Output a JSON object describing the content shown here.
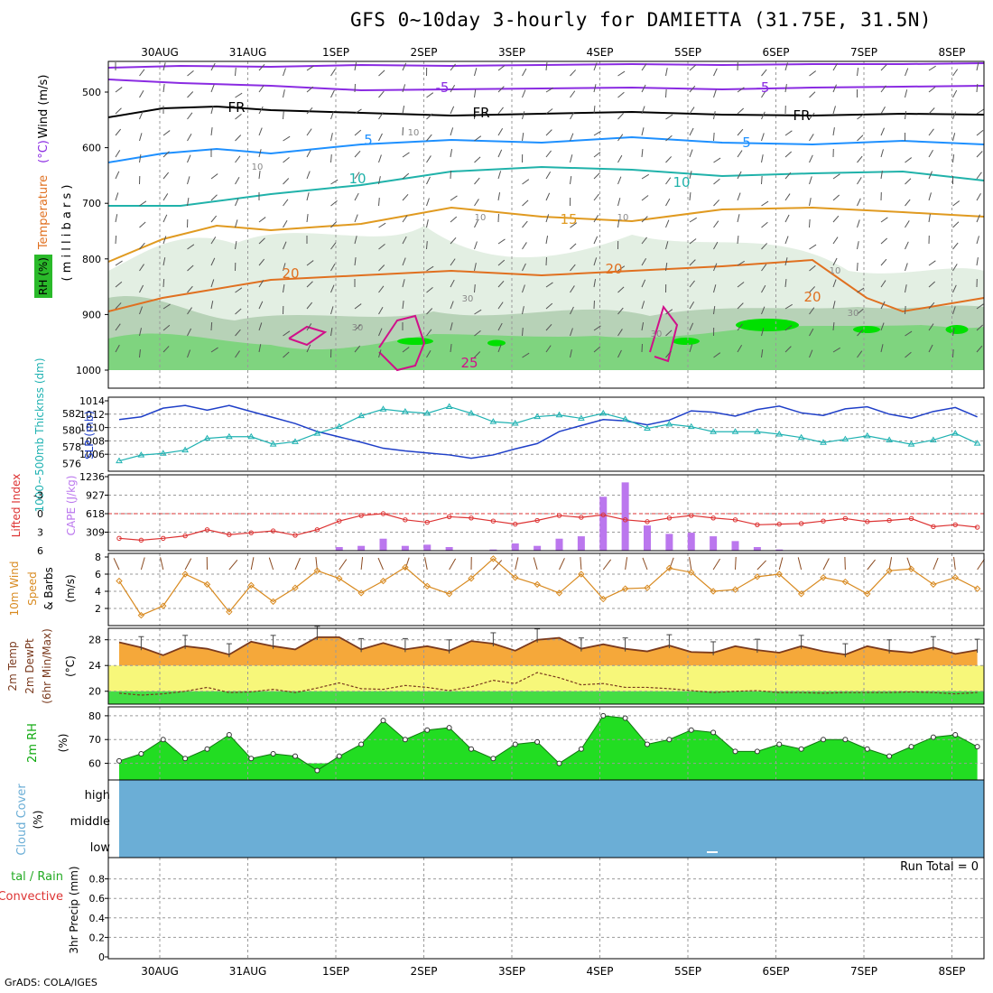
{
  "title": "GFS 0~10day 3-hourly for DAMIETTA (31.75E, 31.5N)",
  "credit": "GrADS: COLA/IGES",
  "colors": {
    "frame": "#000000",
    "grid": "#9a9a9a",
    "isotherm": "#8a2be2",
    "freezing": "#000000",
    "isotherm_5": "#1e90ff",
    "isotherm_10": "#20b2aa",
    "isotherm_15": "#e09a20",
    "isotherm_20": "#e07020",
    "isotherm_25": "#d0108a",
    "rh_light": "#e3efe3",
    "rh_mid": "#b7d2b7",
    "rh_green": "#7fd47f",
    "rh_bright": "#00e000",
    "slp": "#1f3fc8",
    "thickness": "#20b2b2",
    "li_cape_line": "#dd3333",
    "cape_bars": "#bb77ee",
    "wind10m": "#d88a20",
    "temp_fill": "#f5a83a",
    "temp_line": "#7a3a1e",
    "band_yellow": "#f7f77a",
    "band_green": "#44dd44",
    "rh2m_fill": "#22dd22",
    "rh2m_dark": "#11aa11",
    "cloud": "#6baed6",
    "precip_run_total_text": "#000000"
  },
  "x_labels_top": [
    "30AUG",
    "31AUG",
    "1SEP",
    "2SEP",
    "3SEP",
    "4SEP",
    "5SEP",
    "6SEP",
    "7SEP",
    "8SEP"
  ],
  "x_labels_bottom": [
    "30AUG",
    "31AUG",
    "1SEP",
    "2SEP",
    "3SEP",
    "4SEP",
    "5SEP",
    "6SEP",
    "7SEP",
    "8SEP"
  ],
  "panels": {
    "upper_air": {
      "ylabel_parts": [
        {
          "text": "Wind (m/s)",
          "color": "#000000"
        },
        {
          "text": " (°C)",
          "color": "#8a2be2"
        },
        {
          "text": "Temperature",
          "color": "#e07020"
        }
      ],
      "rh_label": "RH (%)",
      "ylabel_units": "( m i l l i b a r s )",
      "levels": [
        "500",
        "600",
        "700",
        "800",
        "900",
        "1000"
      ],
      "contour_labels": [
        "-5",
        "-5",
        "FR",
        "FR",
        "FR",
        "5",
        "5",
        "10",
        "10",
        "15",
        "20",
        "20",
        "20",
        "25",
        "10",
        "10",
        "10",
        "10",
        "30",
        "30",
        "30",
        "30",
        "10"
      ]
    },
    "slp_thickness": {
      "ylabel_left": "1000~500mb Thicknss (dm)",
      "ylabel_right": "SLP (mb)",
      "thickness_ticks": [
        "582",
        "580",
        "578",
        "576"
      ],
      "slp_ticks": [
        "1014",
        "1012",
        "1010",
        "1008",
        "1006"
      ]
    },
    "li_cape": {
      "ylabel_left": "Lifted Index",
      "ylabel_right": "CAPE (J/kg)",
      "li_ticks": [
        "-3",
        "0",
        "3",
        "6"
      ],
      "cape_ticks": [
        "1236",
        "927",
        "618",
        "309"
      ]
    },
    "wind10m": {
      "ylabel_a": "10m Wind",
      "ylabel_b": "Speed",
      "ylabel_c": "& Barbs",
      "units": "(m/s)",
      "ticks": [
        "8",
        "6",
        "4",
        "2"
      ]
    },
    "temp2m": {
      "ylabel_a": "2m Temp",
      "ylabel_b": "2m DewPt",
      "ylabel_c": "(6hr Min/Max)",
      "units": "(°C)",
      "ticks": [
        "28",
        "24",
        "20"
      ]
    },
    "rh2m": {
      "ylabel": "2m RH",
      "units": "(%)",
      "ticks": [
        "80",
        "70",
        "60"
      ]
    },
    "cloud": {
      "ylabel": "Cloud Cover",
      "units": "(%)",
      "levels": [
        "high",
        "middle",
        "low"
      ]
    },
    "precip": {
      "ylabel_a": "tal / Rain",
      "ylabel_b": "Convective",
      "ylabel_units": "3hr Precip (mm)",
      "ticks": [
        "0.8",
        "0.6",
        "0.4",
        "0.2",
        "0"
      ],
      "run_total": "Run Total = 0"
    }
  },
  "chart_data": [
    {
      "type": "line",
      "title": "SLP and 1000-500mb thickness",
      "x_days": [
        0.0,
        0.25,
        0.5,
        0.75,
        1.0,
        1.25,
        1.5,
        1.75,
        2.0,
        2.25,
        2.5,
        2.75,
        3.0,
        3.25,
        3.5,
        3.75,
        4.0,
        4.25,
        4.5,
        4.75,
        5.0,
        5.25,
        5.5,
        5.75,
        6.0,
        6.25,
        6.5,
        6.75,
        7.0,
        7.25,
        7.5,
        7.75,
        8.0,
        8.25,
        8.5,
        8.75,
        9.0,
        9.25,
        9.5,
        9.75
      ],
      "series": [
        {
          "name": "SLP (mb)",
          "unit": "mb",
          "values": [
            1011.2,
            1011.6,
            1012.9,
            1013.3,
            1012.6,
            1013.3,
            1012.4,
            1011.5,
            1010.6,
            1009.4,
            1008.6,
            1007.8,
            1006.9,
            1006.5,
            1006.2,
            1005.9,
            1005.4,
            1005.9,
            1006.8,
            1007.6,
            1009.4,
            1010.3,
            1011.2,
            1011.0,
            1010.4,
            1011.1,
            1012.5,
            1012.3,
            1011.7,
            1012.7,
            1013.2,
            1012.2,
            1011.8,
            1012.8,
            1013.1,
            1012.0,
            1011.4,
            1012.4,
            1013.0,
            1011.6
          ]
        },
        {
          "name": "1000-500mb Thickness (dm)",
          "unit": "dm",
          "values": [
            576.3,
            577.0,
            577.2,
            577.6,
            579.0,
            579.2,
            579.2,
            578.3,
            578.6,
            579.6,
            580.4,
            581.7,
            582.5,
            582.2,
            582.0,
            582.8,
            582.0,
            581.0,
            580.8,
            581.6,
            581.8,
            581.4,
            582.0,
            581.3,
            580.2,
            580.7,
            580.4,
            579.8,
            579.8,
            579.8,
            579.5,
            579.1,
            578.5,
            578.9,
            579.3,
            578.8,
            578.3,
            578.8,
            579.6,
            578.4
          ]
        }
      ],
      "xlabel": "",
      "ylim_slp": [
        1004,
        1014
      ],
      "ylim_thickness": [
        575.5,
        583.5
      ]
    },
    {
      "type": "bar",
      "title": "Lifted Index and CAPE",
      "x_days": [
        0.0,
        0.25,
        0.5,
        0.75,
        1.0,
        1.25,
        1.5,
        1.75,
        2.0,
        2.25,
        2.5,
        2.75,
        3.0,
        3.25,
        3.5,
        3.75,
        4.0,
        4.25,
        4.5,
        4.75,
        5.0,
        5.25,
        5.5,
        5.75,
        6.0,
        6.25,
        6.5,
        6.75,
        7.0,
        7.25,
        7.5,
        7.75,
        8.0,
        8.25,
        8.5,
        8.75,
        9.0,
        9.25,
        9.5,
        9.75
      ],
      "series": [
        {
          "name": "Lifted Index",
          "values": [
            4.0,
            4.3,
            4.0,
            3.6,
            2.6,
            3.4,
            3.1,
            2.8,
            3.5,
            2.6,
            1.2,
            0.3,
            0.0,
            1.0,
            1.4,
            0.5,
            0.7,
            1.2,
            1.7,
            1.1,
            0.3,
            0.6,
            0.2,
            1.0,
            1.3,
            0.7,
            0.3,
            0.7,
            1.0,
            1.8,
            1.7,
            1.6,
            1.2,
            0.8,
            1.3,
            1.1,
            0.8,
            2.1,
            1.8,
            2.2
          ]
        },
        {
          "name": "CAPE (J/kg)",
          "values": [
            0,
            0,
            0,
            0,
            0,
            0,
            0,
            0,
            0,
            0,
            60,
            80,
            200,
            80,
            100,
            60,
            0,
            20,
            120,
            80,
            200,
            240,
            900,
            1140,
            420,
            280,
            300,
            240,
            160,
            60,
            20,
            0,
            0,
            0,
            0,
            0,
            0,
            0,
            0,
            0
          ]
        }
      ],
      "li_lim": [
        6,
        -6
      ],
      "cape_lim": [
        0,
        1236
      ]
    },
    {
      "type": "line",
      "title": "10m Wind Speed",
      "x_days": [
        0.0,
        0.25,
        0.5,
        0.75,
        1.0,
        1.25,
        1.5,
        1.75,
        2.0,
        2.25,
        2.5,
        2.75,
        3.0,
        3.25,
        3.5,
        3.75,
        4.0,
        4.25,
        4.5,
        4.75,
        5.0,
        5.25,
        5.5,
        5.75,
        6.0,
        6.25,
        6.5,
        6.75,
        7.0,
        7.25,
        7.5,
        7.75,
        8.0,
        8.25,
        8.5,
        8.75,
        9.0,
        9.25,
        9.5,
        9.75
      ],
      "series": [
        {
          "name": "10m Wind Speed (m/s)",
          "values": [
            5.2,
            1.2,
            2.3,
            6.0,
            4.8,
            1.6,
            4.7,
            2.8,
            4.4,
            6.4,
            5.5,
            3.8,
            5.2,
            6.8,
            4.6,
            3.7,
            5.5,
            7.8,
            5.6,
            4.8,
            3.8,
            6.0,
            3.1,
            4.3,
            4.4,
            6.7,
            6.2,
            4.0,
            4.2,
            5.7,
            6.0,
            3.7,
            5.6,
            5.1,
            3.7,
            6.4,
            6.6,
            4.8,
            5.6,
            4.3
          ]
        }
      ],
      "ylim": [
        0,
        8
      ]
    },
    {
      "type": "area",
      "title": "2m Temperature and Dewpoint",
      "x_days": [
        0.0,
        0.25,
        0.5,
        0.75,
        1.0,
        1.25,
        1.5,
        1.75,
        2.0,
        2.25,
        2.5,
        2.75,
        3.0,
        3.25,
        3.5,
        3.75,
        4.0,
        4.25,
        4.5,
        4.75,
        5.0,
        5.25,
        5.5,
        5.75,
        6.0,
        6.25,
        6.5,
        6.75,
        7.0,
        7.25,
        7.5,
        7.75,
        8.0,
        8.25,
        8.5,
        8.75,
        9.0,
        9.25,
        9.5,
        9.75
      ],
      "series": [
        {
          "name": "2m Temp (°C)",
          "values": [
            27.6,
            26.8,
            25.6,
            27.0,
            26.6,
            25.7,
            27.7,
            27.0,
            26.5,
            28.4,
            28.4,
            26.5,
            27.5,
            26.5,
            27.0,
            26.3,
            27.8,
            27.4,
            26.3,
            28.0,
            28.3,
            26.6,
            27.3,
            26.6,
            26.2,
            27.1,
            26.1,
            26.0,
            27.0,
            26.4,
            26.0,
            27.0,
            26.2,
            25.7,
            27.0,
            26.3,
            26.0,
            26.8,
            25.8,
            26.4
          ]
        },
        {
          "name": "2m DewPt (°C)",
          "values": [
            19.7,
            19.4,
            19.6,
            20.0,
            20.6,
            19.8,
            19.9,
            20.3,
            19.8,
            20.5,
            21.3,
            20.4,
            20.3,
            20.9,
            20.6,
            20.1,
            20.7,
            21.7,
            21.2,
            22.9,
            22.1,
            21.0,
            21.2,
            20.6,
            20.6,
            20.4,
            20.1,
            19.8,
            20.0,
            20.1,
            19.8,
            19.8,
            19.7,
            19.8,
            19.8,
            19.8,
            19.9,
            19.8,
            19.6,
            19.8
          ]
        }
      ],
      "ylim": [
        18,
        29.5
      ]
    },
    {
      "type": "area",
      "title": "2m RH",
      "x_days": [
        0.0,
        0.25,
        0.5,
        0.75,
        1.0,
        1.25,
        1.5,
        1.75,
        2.0,
        2.25,
        2.5,
        2.75,
        3.0,
        3.25,
        3.5,
        3.75,
        4.0,
        4.25,
        4.5,
        4.75,
        5.0,
        5.25,
        5.5,
        5.75,
        6.0,
        6.25,
        6.5,
        6.75,
        7.0,
        7.25,
        7.5,
        7.75,
        8.0,
        8.25,
        8.5,
        8.75,
        9.0,
        9.25,
        9.5,
        9.75
      ],
      "series": [
        {
          "name": "2m RH (%)",
          "values": [
            61,
            64,
            70,
            62,
            66,
            72,
            62,
            64,
            63,
            57,
            63,
            68,
            78,
            70,
            74,
            75,
            66,
            62,
            68,
            69,
            60,
            66,
            80,
            79,
            68,
            70,
            74,
            73,
            65,
            65,
            68,
            66,
            70,
            70,
            66,
            63,
            67,
            71,
            72,
            67
          ]
        }
      ],
      "ylim": [
        53,
        83
      ]
    },
    {
      "type": "heatmap",
      "title": "Cloud Cover",
      "levels": [
        "high",
        "middle",
        "low"
      ],
      "coverage_percent": 100
    },
    {
      "type": "bar",
      "title": "3hr Precip",
      "x_days": [
        0.0,
        1.0,
        2.0,
        3.0,
        4.0,
        5.0,
        6.0,
        7.0,
        8.0,
        9.0
      ],
      "series": [
        {
          "name": "3hr Precip (mm)",
          "values": [
            0,
            0,
            0,
            0,
            0,
            0,
            0,
            0,
            0,
            0
          ]
        }
      ],
      "ylim": [
        0,
        1.0
      ]
    }
  ]
}
